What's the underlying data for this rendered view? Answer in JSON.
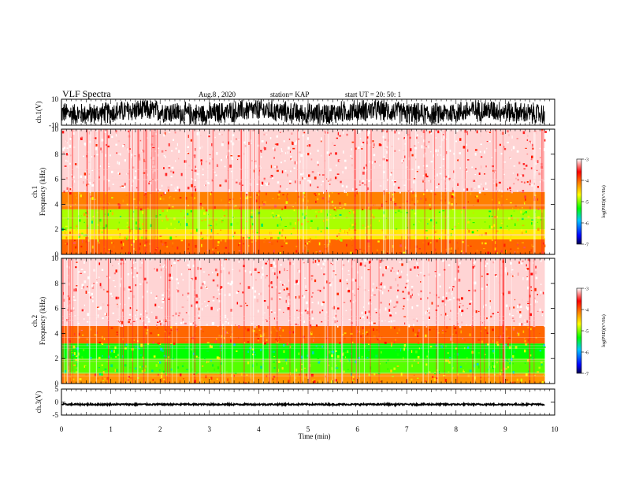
{
  "header": {
    "title": "VLF Spectra",
    "date": "Aug.8 , 2020",
    "station": "station= KAP",
    "start": "start UT = 20: 50: 1"
  },
  "chart_data": [
    {
      "type": "line",
      "name": "ch1-waveform",
      "ylabel": "ch.1(V)",
      "ylim": [
        -10,
        10
      ],
      "yticks": [
        "10",
        "-10"
      ],
      "xlim": [
        0,
        10
      ],
      "data_extent_min": 9.8,
      "envelope": [
        [
          -9.5,
          9.5
        ]
      ]
    },
    {
      "type": "heatmap",
      "name": "ch1-spectrogram",
      "ylabel": "ch.1\nFrequency (kHz)",
      "ylim": [
        0,
        10
      ],
      "yticks": [
        "0",
        "2",
        "4",
        "6",
        "8",
        "10"
      ],
      "xlim": [
        0,
        10
      ],
      "data_extent_min": 9.8,
      "bands_khz": [
        {
          "from": 0.0,
          "to": 1.2,
          "level": -4.0
        },
        {
          "from": 1.2,
          "to": 2.0,
          "level": -4.6
        },
        {
          "from": 2.0,
          "to": 3.6,
          "level": -4.9
        },
        {
          "from": 3.6,
          "to": 5.0,
          "level": -4.1
        },
        {
          "from": 5.0,
          "to": 10.0,
          "level": -3.1
        }
      ],
      "colorbar": {
        "label": "log(PSD)(V²/Hz)",
        "min": -7,
        "max": -3,
        "ticks": [
          "-3",
          "-4",
          "-5",
          "-6",
          "-7"
        ]
      }
    },
    {
      "type": "heatmap",
      "name": "ch2-spectrogram",
      "ylabel": "ch.2\nFrequency (kHz)",
      "ylim": [
        0,
        10
      ],
      "yticks": [
        "0",
        "2",
        "4",
        "6",
        "8",
        "10"
      ],
      "xlim": [
        0,
        10
      ],
      "data_extent_min": 9.8,
      "bands_khz": [
        {
          "from": 0.0,
          "to": 0.8,
          "level": -4.2
        },
        {
          "from": 0.8,
          "to": 2.0,
          "level": -5.1
        },
        {
          "from": 2.0,
          "to": 3.2,
          "level": -5.3
        },
        {
          "from": 3.2,
          "to": 4.6,
          "level": -4.0
        },
        {
          "from": 4.6,
          "to": 10.0,
          "level": -3.1
        }
      ],
      "colorbar": {
        "label": "log(PSD)(V²/Hz)",
        "min": -7,
        "max": -3,
        "ticks": [
          "-3",
          "-4",
          "-5",
          "-6",
          "-7"
        ]
      }
    },
    {
      "type": "line",
      "name": "ch3-waveform",
      "ylabel": "ch.3(V)",
      "ylim": [
        -5,
        5
      ],
      "yticks": [
        "5",
        "0",
        "-5"
      ],
      "xlim": [
        0,
        10
      ],
      "data_extent_min": 9.8,
      "envelope": [
        [
          -1.2,
          -0.6
        ]
      ]
    }
  ],
  "xaxis": {
    "label": "Time (min)",
    "ticks": [
      "0",
      "1",
      "2",
      "3",
      "4",
      "5",
      "6",
      "7",
      "8",
      "9",
      "10"
    ]
  },
  "colors": {
    "trace": "#000000",
    "colormap": [
      "#000050",
      "#0000ff",
      "#00c8ff",
      "#00ff00",
      "#ffff00",
      "#ff8000",
      "#ff0000",
      "#ffffff"
    ]
  }
}
